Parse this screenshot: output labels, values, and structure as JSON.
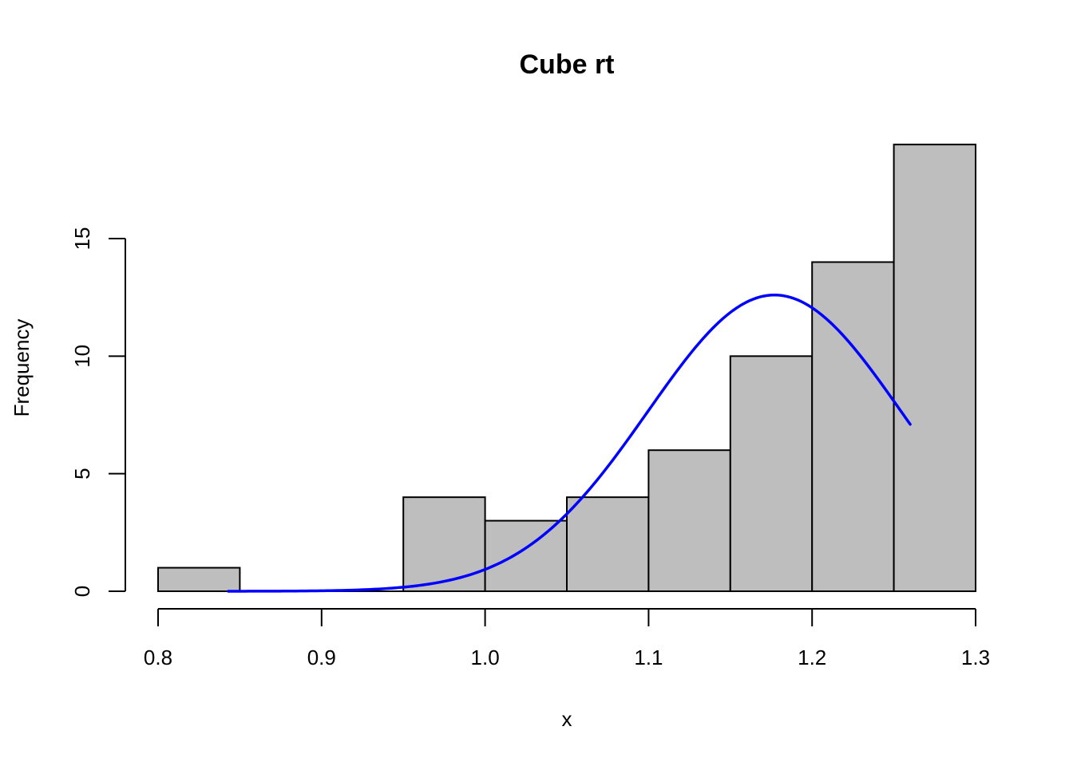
{
  "chart_data": {
    "type": "bar",
    "subtype": "histogram",
    "title": "Cube rt",
    "xlabel": "x",
    "ylabel": "Frequency",
    "xlim": [
      0.8,
      1.3
    ],
    "ylim": [
      0,
      19
    ],
    "x_ticks": [
      "0.8",
      "0.9",
      "1.0",
      "1.1",
      "1.2",
      "1.3"
    ],
    "y_ticks": [
      "0",
      "5",
      "10",
      "15"
    ],
    "bins": [
      {
        "start": 0.8,
        "end": 0.85,
        "count": 1
      },
      {
        "start": 0.85,
        "end": 0.9,
        "count": 0
      },
      {
        "start": 0.9,
        "end": 0.95,
        "count": 0
      },
      {
        "start": 0.95,
        "end": 1.0,
        "count": 4
      },
      {
        "start": 1.0,
        "end": 1.05,
        "count": 3
      },
      {
        "start": 1.05,
        "end": 1.1,
        "count": 4
      },
      {
        "start": 1.1,
        "end": 1.15,
        "count": 6
      },
      {
        "start": 1.15,
        "end": 1.2,
        "count": 10
      },
      {
        "start": 1.2,
        "end": 1.25,
        "count": 14
      },
      {
        "start": 1.25,
        "end": 1.3,
        "count": 19
      }
    ],
    "overlay_curve": {
      "type": "normal-density",
      "color": "#0000ff",
      "mean": 1.177,
      "sd": 0.0775,
      "peak": 12.6,
      "x_range": [
        0.843,
        1.26
      ]
    },
    "bar_fill": "#bebebe",
    "bar_stroke": "#000000",
    "grid": false,
    "legend": "none"
  }
}
